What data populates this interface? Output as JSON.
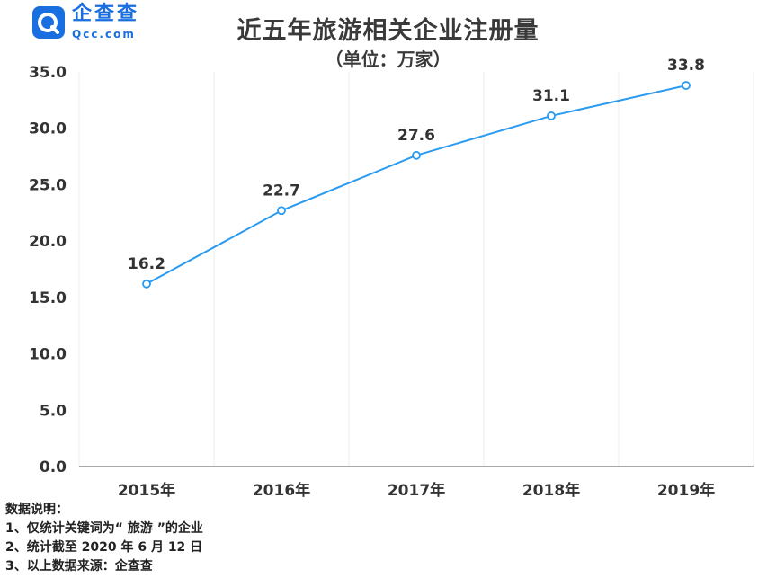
{
  "logo": {
    "brand_cn": "企查查",
    "brand_en": "Qcc.com"
  },
  "colors": {
    "line": "#2a9bf0",
    "brand": "#1a6fe0",
    "grid": "#ececec",
    "axis": "#8c8c8c"
  },
  "chart_data": {
    "type": "line",
    "title": "近五年旅游相关企业注册量",
    "subtitle": "（单位：万家）",
    "categories": [
      "2015年",
      "2016年",
      "2017年",
      "2018年",
      "2019年"
    ],
    "series": [
      {
        "values": [
          16.2,
          22.7,
          27.6,
          31.1,
          33.8
        ]
      }
    ],
    "data_labels": [
      "16.2",
      "22.7",
      "27.6",
      "31.1",
      "33.8"
    ],
    "ylim": [
      0,
      35
    ],
    "yticks": [
      "0.0",
      "5.0",
      "10.0",
      "15.0",
      "20.0",
      "25.0",
      "30.0",
      "35.0"
    ],
    "grid": "vertical",
    "legend": "none"
  },
  "notes": {
    "heading": "数据说明：",
    "items": [
      "1、仅统计关键词为“ 旅游 ”的企业",
      "2、统计截至 2020 年 6 月 12 日",
      "3、以上数据来源：企查查"
    ]
  }
}
